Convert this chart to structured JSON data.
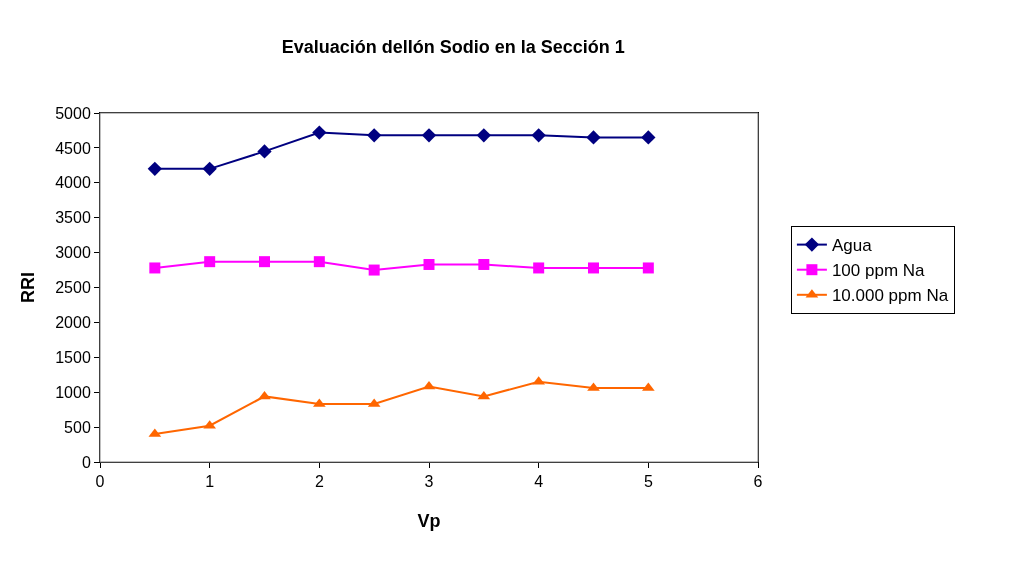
{
  "chart_data": {
    "type": "line",
    "title": "Evaluación delIón Sodio en la Sección 1",
    "xlabel": "Vp",
    "ylabel": "RRI",
    "x": [
      0.5,
      1,
      1.5,
      2,
      2.5,
      3,
      3.5,
      4,
      4.5,
      5
    ],
    "series": [
      {
        "name": "Agua",
        "color": "#000080",
        "marker": "diamond",
        "values": [
          4200,
          4200,
          4450,
          4720,
          4680,
          4680,
          4680,
          4680,
          4650,
          4650
        ]
      },
      {
        "name": "100 ppm Na",
        "color": "#ff00ff",
        "marker": "square",
        "values": [
          2780,
          2870,
          2870,
          2870,
          2750,
          2830,
          2830,
          2780,
          2780,
          2780
        ]
      },
      {
        "name": "10.000 ppm Na",
        "color": "#ff6600",
        "marker": "triangle",
        "values": [
          400,
          520,
          940,
          830,
          830,
          1080,
          940,
          1150,
          1060,
          1060
        ]
      }
    ],
    "xlim": [
      0,
      6
    ],
    "xticks": [
      0,
      1,
      2,
      3,
      4,
      5,
      6
    ],
    "ylim": [
      0,
      5000
    ],
    "yticks": [
      0,
      500,
      1000,
      1500,
      2000,
      2500,
      3000,
      3500,
      4000,
      4500,
      5000
    ],
    "legend": "right",
    "line_style": "solid"
  }
}
